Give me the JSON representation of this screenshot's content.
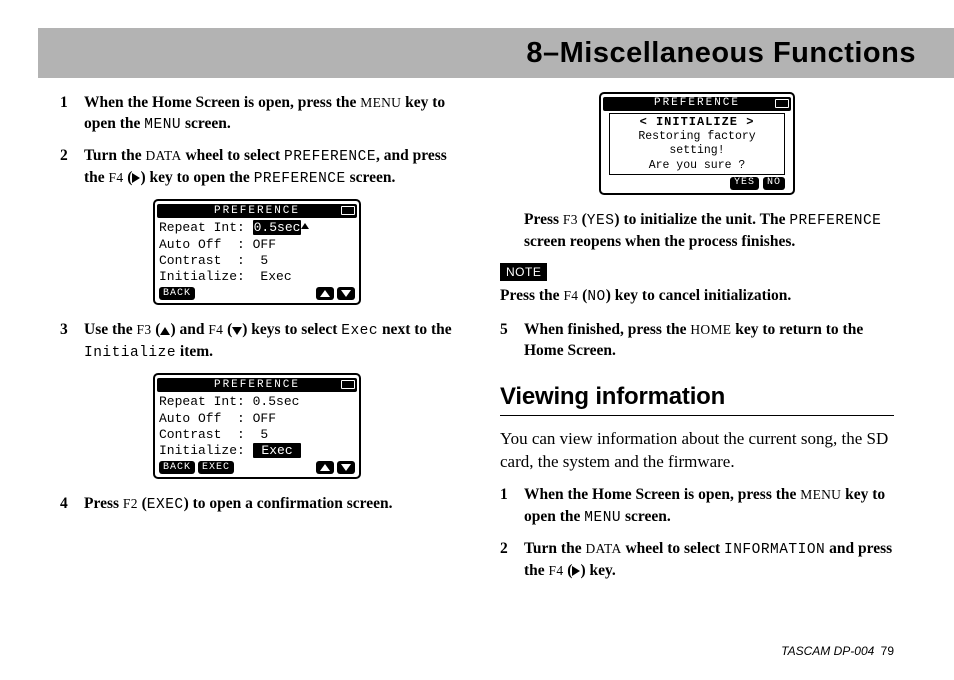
{
  "chapter_title": "8–Miscellaneous Functions",
  "left": {
    "step1": {
      "num": "1",
      "parts": [
        "When the Home Screen is open, press the ",
        "MENU",
        " key to open the ",
        "MENU",
        " screen."
      ]
    },
    "step2": {
      "num": "2",
      "parts": [
        "Turn the ",
        "DATA",
        " wheel to select ",
        "PREFERENCE",
        ", and press the ",
        "F4",
        " (",
        "▶",
        ") key to open the ",
        "PREFERENCE",
        " screen."
      ]
    },
    "lcd1": {
      "title": "PREFERENCE",
      "row1": "Repeat Int: ",
      "row1_hl": "0.5sec",
      "row2": "Auto Off  : OFF",
      "row3": "Contrast  :  5",
      "row4": "Initialize:  Exec",
      "back": "BACK"
    },
    "step3": {
      "num": "3",
      "parts": [
        "Use the ",
        "F3",
        " (",
        "▲",
        ") and ",
        "F4",
        " (",
        "▼",
        ") keys to select ",
        "Exec",
        " next to the ",
        "Initialize",
        " item."
      ]
    },
    "lcd2": {
      "title": "PREFERENCE",
      "row1": "Repeat Int: 0.5sec",
      "row2": "Auto Off  : OFF",
      "row3": "Contrast  :  5",
      "row4": "Initialize: ",
      "row4_hl": " Exec ",
      "back": "BACK",
      "exec": "EXEC"
    },
    "step4": {
      "num": "4",
      "parts": [
        "Press ",
        "F2",
        " (",
        "EXEC",
        ") to open a confirmation screen."
      ]
    }
  },
  "right": {
    "lcd3": {
      "title": "PREFERENCE",
      "ini": "< INITIALIZE >",
      "line1": "Restoring factory setting!",
      "line2": "Are you sure ?",
      "yes": "YES",
      "no": "NO"
    },
    "after_lcd3": [
      "Press ",
      "F3",
      " (",
      "YES",
      ") to initialize the unit. The ",
      "PREFERENCE",
      " screen reopens when the process finishes."
    ],
    "note_label": "NOTE",
    "note": [
      "Press the ",
      "F4",
      " (",
      "NO",
      ") key to cancel initialization."
    ],
    "step5": {
      "num": "5",
      "parts": [
        "When finished, press the ",
        "HOME",
        " key to return to the Home Screen."
      ]
    },
    "section_heading": "Viewing information",
    "para": "You can view information about the current song, the SD card, the system and the firmware.",
    "vstep1": {
      "num": "1",
      "parts": [
        "When the Home Screen is open, press the ",
        "MENU",
        " key to open the ",
        "MENU",
        " screen."
      ]
    },
    "vstep2": {
      "num": "2",
      "parts": [
        "Turn the ",
        "DATA",
        " wheel to select ",
        "INFORMATION",
        " and press the ",
        "F4",
        " (",
        "▶",
        ") key."
      ]
    }
  },
  "footer": {
    "brand": "TASCAM  DP-004 ",
    "page": "79"
  }
}
